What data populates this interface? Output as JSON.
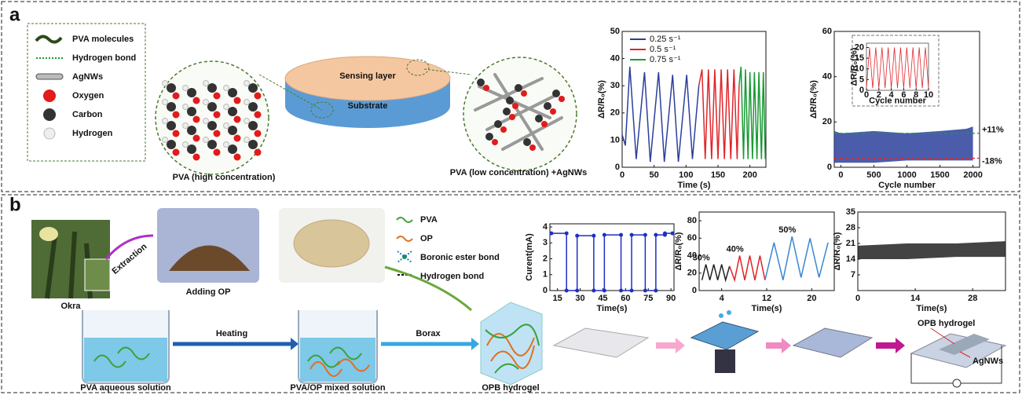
{
  "figure": {
    "panel_a": {
      "label": "a",
      "legend": [
        "PVA molecules",
        "Hydrogen bond",
        "AgNWs",
        "Oxygen",
        "Carbon",
        "Hydrogen"
      ],
      "scheme": {
        "top_layer": "Sensing layer",
        "bottom_layer": "Substrate",
        "left": "PVA (high concentration)",
        "right": "PVA (low concentration) +AgNWs"
      }
    },
    "panel_b": {
      "label": "b",
      "legend": [
        "PVA",
        "OP",
        "Boronic ester bond",
        "Hydrogen bond"
      ],
      "steps": {
        "okra": "Okra",
        "extraction": "Extraction",
        "adding": "Adding OP",
        "heating": "Heating",
        "borax": "Borax",
        "beaker1": "PVA aqueous solution",
        "beaker2": "PVA/OP mixed solution",
        "gel": "OPB hydrogel"
      },
      "device": {
        "hydrogel": "OPB hydrogel",
        "wires": "AgNWs"
      }
    }
  },
  "chart_data": [
    {
      "type": "line",
      "ylabel": "ΔR/R₀(%)",
      "xlabel": "Time (s)",
      "xlim": [
        0,
        225
      ],
      "ylim": [
        0,
        50
      ],
      "xticks": [
        0,
        50,
        100,
        150,
        200
      ],
      "yticks": [
        0,
        10,
        20,
        30,
        40,
        50
      ],
      "legend": "upper left",
      "series": [
        {
          "name": "0.25 s⁻¹",
          "color": "#2b3f9b",
          "x": [
            0,
            5,
            12,
            22,
            35,
            44,
            57,
            66,
            79,
            88,
            101,
            110,
            120
          ],
          "values": [
            12,
            8,
            37,
            3,
            35,
            2,
            35,
            2,
            34,
            2,
            34,
            3,
            30
          ]
        },
        {
          "name": "0.5 s⁻¹",
          "color": "#e0252b",
          "x": [
            120,
            125,
            130,
            135,
            140,
            145,
            150,
            155,
            160,
            165,
            170,
            175,
            180,
            183
          ],
          "values": [
            30,
            36,
            3,
            36,
            3,
            36,
            3,
            36,
            3,
            36,
            3,
            36,
            3,
            30
          ]
        },
        {
          "name": "0.75 s⁻¹",
          "color": "#1a9a35",
          "x": [
            183,
            186,
            190,
            193,
            197,
            200,
            204,
            207,
            211,
            214,
            218,
            221,
            224
          ],
          "values": [
            30,
            37,
            3,
            36,
            3,
            35,
            3,
            35,
            3,
            35,
            3,
            35,
            3
          ]
        }
      ]
    },
    {
      "type": "band",
      "ylabel": "ΔR/R₀(%)",
      "xlabel": "Cycle number",
      "xlim": [
        -100,
        2100
      ],
      "ylim": [
        0,
        60
      ],
      "xticks": [
        0,
        500,
        1000,
        1500,
        2000
      ],
      "yticks": [
        0,
        20,
        40,
        60
      ],
      "band": {
        "color": "#2b3f9b",
        "x": [
          -100,
          0,
          500,
          1000,
          1500,
          1900,
          2000
        ],
        "upper": [
          16,
          15,
          16,
          15,
          16,
          17,
          18
        ],
        "lower": [
          2,
          2,
          2,
          3,
          3,
          3,
          3
        ]
      },
      "reference_lines": [
        {
          "value": 15,
          "label": "+11%",
          "color": "#1a9a35"
        },
        {
          "value": 4,
          "label": "-18%",
          "color": "#e0252b"
        }
      ]
    },
    {
      "type": "line",
      "ylabel": "ΔR/R₀(%)",
      "xlabel": "Cycle number",
      "xlim": [
        0,
        10
      ],
      "ylim": [
        0,
        22
      ],
      "xticks": [
        0,
        2,
        4,
        6,
        8,
        10
      ],
      "yticks": [
        0,
        5,
        10,
        15,
        20
      ],
      "series": [
        {
          "color": "#e0252b",
          "x": [
            0,
            0.5,
            1,
            1.5,
            2,
            2.5,
            3,
            3.5,
            4,
            4.5,
            5,
            5.5,
            6,
            6.5,
            7,
            7.5,
            8,
            8.5,
            9,
            9.5,
            10
          ],
          "values": [
            1,
            20,
            1,
            20,
            1,
            20,
            1,
            20,
            1,
            20,
            1,
            20,
            1,
            20,
            1,
            20,
            1,
            20,
            1,
            20,
            1
          ]
        }
      ]
    },
    {
      "type": "line",
      "ylabel": "Curent(mA)",
      "xlabel": "Time(s)",
      "xlim": [
        10,
        92
      ],
      "ylim": [
        0,
        4.2
      ],
      "xticks": [
        15,
        30,
        45,
        60,
        75,
        90
      ],
      "yticks": [
        0,
        1,
        2,
        3,
        4
      ],
      "markers": true,
      "series": [
        {
          "color": "#1f2fc4",
          "x": [
            11,
            21,
            21,
            28,
            28,
            39,
            39,
            46,
            46,
            57,
            57,
            64,
            64,
            73,
            73,
            80,
            80,
            86,
            86,
            91
          ],
          "values": [
            3.6,
            3.6,
            0,
            0,
            3.45,
            3.45,
            0,
            0,
            3.5,
            3.5,
            0,
            0,
            3.5,
            3.5,
            0,
            0,
            3.5,
            3.5,
            3.6,
            3.6
          ]
        }
      ]
    },
    {
      "type": "line",
      "ylabel": "ΔR/R₀(%)",
      "xlabel": "Time(s)",
      "xlim": [
        0,
        24
      ],
      "ylim": [
        0,
        90
      ],
      "xticks": [
        4,
        12,
        20
      ],
      "yticks": [
        0,
        20,
        40,
        60,
        80
      ],
      "series_labels": true,
      "series": [
        {
          "name": "30%",
          "color": "#222222",
          "x": [
            0.5,
            1.2,
            1.9,
            2.6,
            3.3,
            4,
            4.7,
            5.4
          ],
          "values": [
            12,
            30,
            12,
            30,
            12,
            30,
            12,
            28
          ]
        },
        {
          "name": "40%",
          "color": "#e0252b",
          "x": [
            5.4,
            6.3,
            7.2,
            8.1,
            9,
            9.9,
            10.8,
            11.7
          ],
          "values": [
            28,
            12,
            40,
            12,
            40,
            12,
            40,
            12
          ]
        },
        {
          "name": "50%",
          "color": "#3a86d4",
          "x": [
            11.7,
            13.3,
            14.9,
            16.5,
            18.1,
            19.7,
            21.3,
            22.9
          ],
          "values": [
            12,
            55,
            12,
            62,
            15,
            60,
            15,
            55
          ]
        }
      ]
    },
    {
      "type": "band",
      "ylabel": "ΔR/R₀(%)",
      "xlabel": "Time(s)",
      "xlim": [
        0,
        36
      ],
      "ylim": [
        0,
        35
      ],
      "xticks": [
        0,
        14,
        28
      ],
      "yticks": [
        7,
        14,
        21,
        28,
        35
      ],
      "band": {
        "color": "#222222",
        "x": [
          0,
          12,
          24,
          36
        ],
        "upper": [
          20,
          21,
          21,
          22
        ],
        "lower": [
          14,
          14,
          15,
          15
        ]
      }
    }
  ]
}
